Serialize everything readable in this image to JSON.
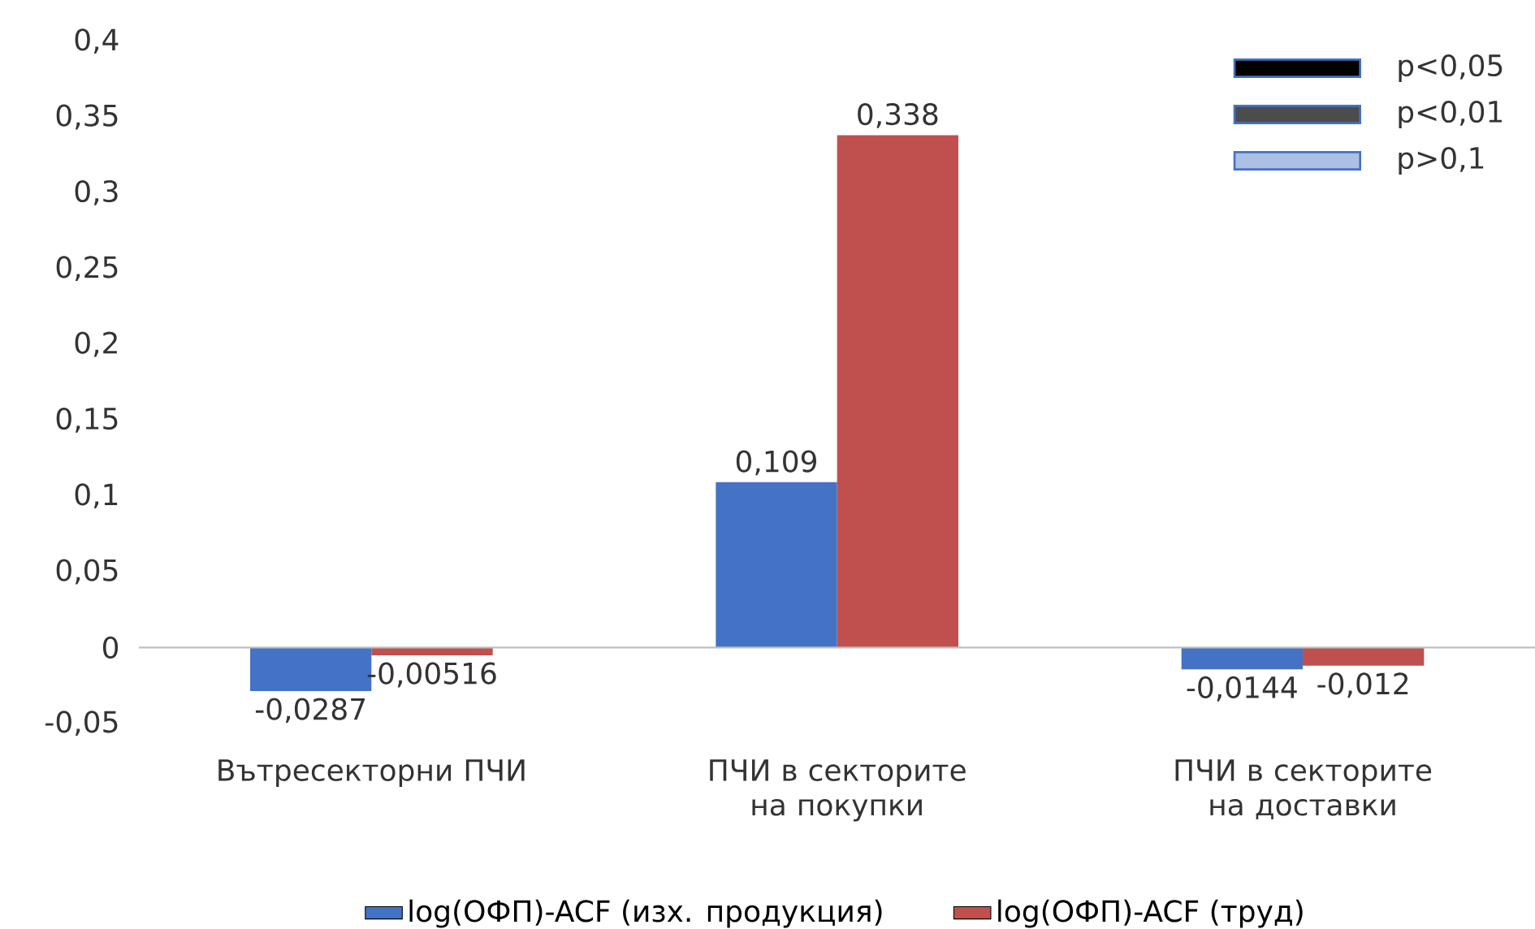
{
  "chart_data": {
    "type": "bar",
    "categories": [
      "Вътресекторни ПЧИ",
      "ПЧИ в секторите на покупки",
      "ПЧИ в секторите на доставки"
    ],
    "series": [
      {
        "name": "log(ОФП)-ACF (изх. продукция)",
        "color": "#4472c4",
        "values": [
          -0.0287,
          0.109,
          -0.0144
        ],
        "value_labels": [
          "-0,0287",
          "0,109",
          "-0,0144"
        ]
      },
      {
        "name": "log(ОФП)-ACF (труд)",
        "color": "#c0504d",
        "values": [
          -0.00516,
          0.338,
          -0.012
        ],
        "value_labels": [
          "-0,00516",
          "0,338",
          "-0,012"
        ]
      }
    ],
    "ylim": [
      -0.05,
      0.4
    ],
    "yticks": [
      {
        "value": -0.05,
        "label": "-0,05"
      },
      {
        "value": 0,
        "label": "0"
      },
      {
        "value": 0.05,
        "label": "0,05"
      },
      {
        "value": 0.1,
        "label": "0,1"
      },
      {
        "value": 0.15,
        "label": "0,15"
      },
      {
        "value": 0.2,
        "label": "0,2"
      },
      {
        "value": 0.25,
        "label": "0,25"
      },
      {
        "value": 0.3,
        "label": "0,3"
      },
      {
        "value": 0.35,
        "label": "0,35"
      },
      {
        "value": 0.4,
        "label": "0,4"
      }
    ],
    "annotations": [
      "p<0,05",
      "p<0,01",
      "p>0,1"
    ],
    "ref_lines": [
      {
        "axis": "y",
        "value": 0,
        "color": "#bfbfbf"
      }
    ],
    "grid": false,
    "legend": "bottom"
  }
}
